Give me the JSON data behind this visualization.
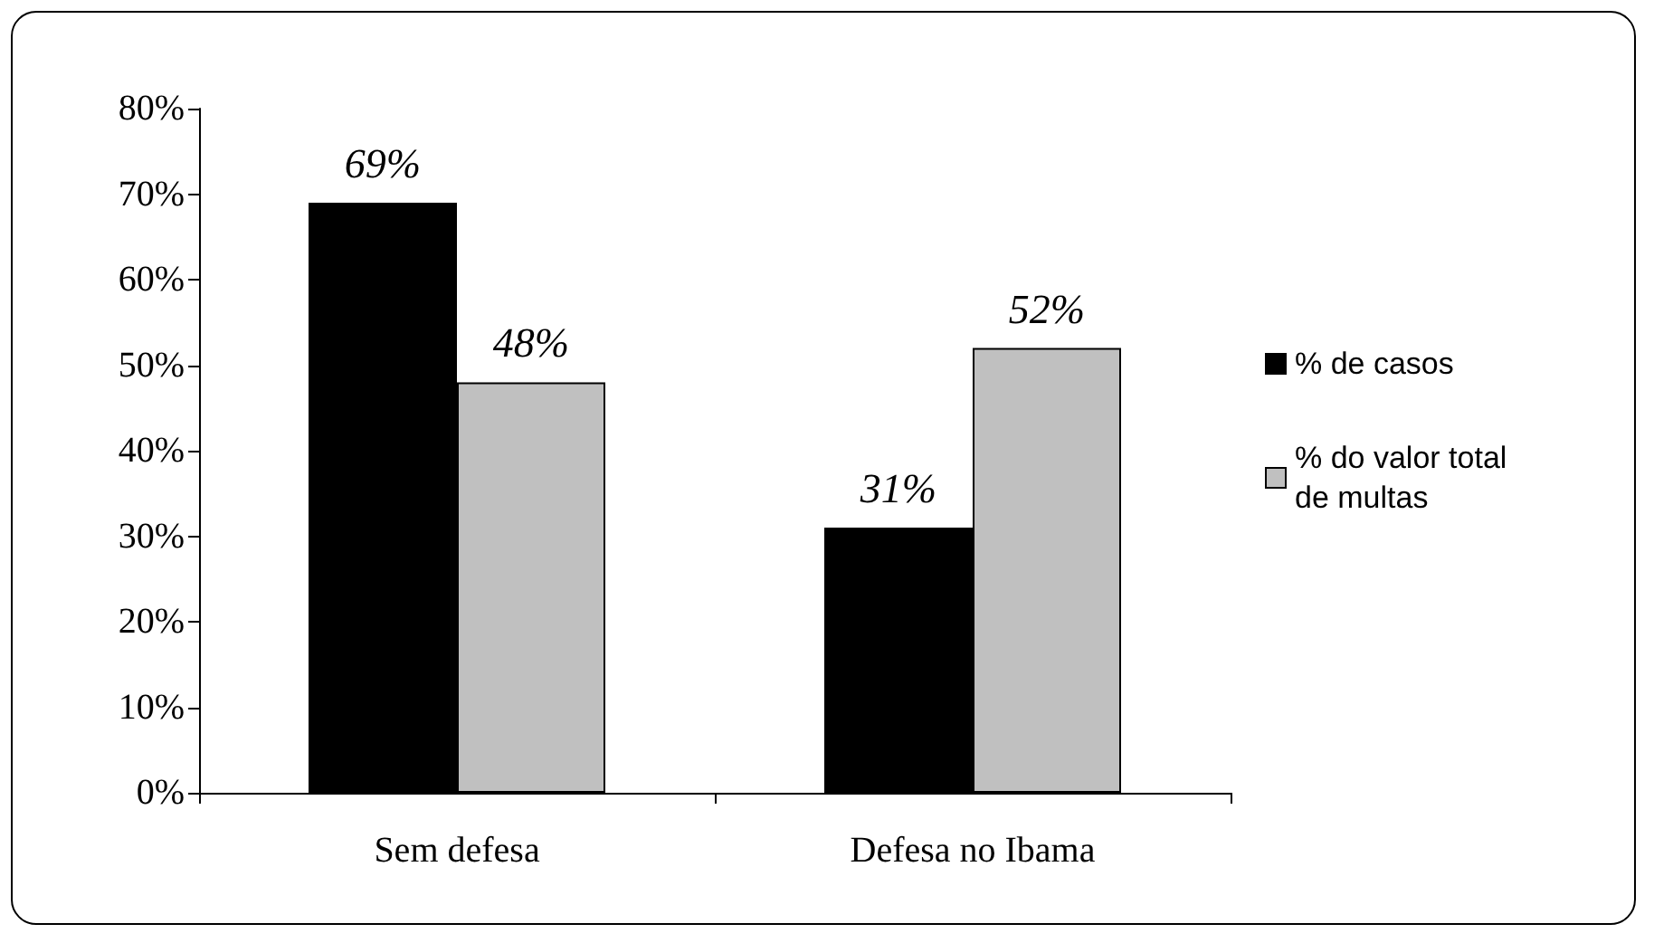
{
  "chart_data": {
    "type": "bar",
    "categories": [
      "Sem defesa",
      "Defesa no Ibama"
    ],
    "series": [
      {
        "name": "% de casos",
        "color": "#000000",
        "values": [
          69,
          31
        ],
        "value_labels": [
          "69%",
          "31%"
        ]
      },
      {
        "name": "% do valor total de multas",
        "color": "#c0c0c0",
        "values": [
          48,
          52
        ],
        "value_labels": [
          "48%",
          "52%"
        ]
      }
    ],
    "ylim": [
      0,
      80
    ],
    "yticks": [
      {
        "value": 0,
        "label": "0%"
      },
      {
        "value": 10,
        "label": "10%"
      },
      {
        "value": 20,
        "label": "20%"
      },
      {
        "value": 30,
        "label": "30%"
      },
      {
        "value": 40,
        "label": "40%"
      },
      {
        "value": 50,
        "label": "50%"
      },
      {
        "value": 60,
        "label": "60%"
      },
      {
        "value": 70,
        "label": "70%"
      },
      {
        "value": 80,
        "label": "80%"
      }
    ],
    "grid": false,
    "legend": "right"
  }
}
